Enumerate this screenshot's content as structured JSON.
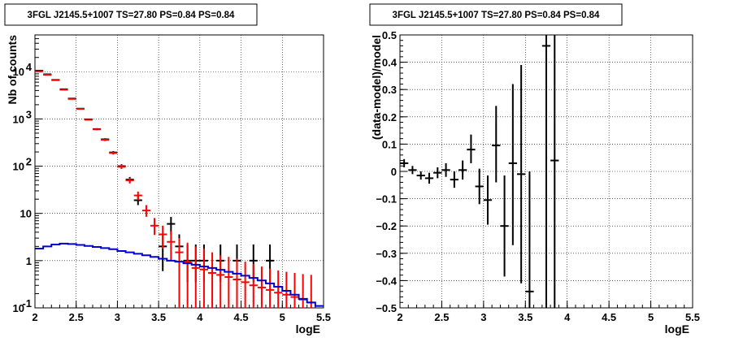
{
  "chart_data": [
    {
      "type": "scatter",
      "title": "3FGL J2145.5+1007 TS=27.80 PS=0.84 PS=0.84",
      "xlabel": "logE",
      "ylabel": "Nb of counts",
      "xlim": [
        2,
        5.5
      ],
      "ylim": [
        0.1,
        60000
      ],
      "yscale": "log",
      "grid": true,
      "xticks": [
        "2",
        "2.5",
        "3",
        "3.5",
        "4",
        "4.5",
        "5",
        "5.5"
      ],
      "yticks": [
        {
          "value": 0.1,
          "label": "10",
          "exp": "-1"
        },
        {
          "value": 1,
          "label": "1",
          "exp": ""
        },
        {
          "value": 10,
          "label": "10",
          "exp": ""
        },
        {
          "value": 100,
          "label": "10",
          "exp": "2"
        },
        {
          "value": 1000,
          "label": "10",
          "exp": "3"
        },
        {
          "value": 10000,
          "label": "10",
          "exp": "4"
        }
      ],
      "series": [
        {
          "color": "#000000",
          "style": "errorbar",
          "points": [
            {
              "x": 2.05,
              "y": 10500,
              "lo": 10300,
              "hi": 10700
            },
            {
              "x": 2.15,
              "y": 8800,
              "lo": 8600,
              "hi": 9000
            },
            {
              "x": 2.25,
              "y": 6700,
              "lo": 6550,
              "hi": 6850
            },
            {
              "x": 2.35,
              "y": 4250,
              "lo": 4150,
              "hi": 4350
            },
            {
              "x": 2.45,
              "y": 2700,
              "lo": 2620,
              "hi": 2780
            },
            {
              "x": 2.55,
              "y": 1650,
              "lo": 1600,
              "hi": 1700
            },
            {
              "x": 2.65,
              "y": 980,
              "lo": 950,
              "hi": 1010
            },
            {
              "x": 2.75,
              "y": 610,
              "lo": 585,
              "hi": 635
            },
            {
              "x": 2.85,
              "y": 370,
              "lo": 350,
              "hi": 390
            },
            {
              "x": 2.95,
              "y": 195,
              "lo": 181,
              "hi": 209
            },
            {
              "x": 3.05,
              "y": 100,
              "lo": 90,
              "hi": 110
            },
            {
              "x": 3.15,
              "y": 52,
              "lo": 45,
              "hi": 59
            },
            {
              "x": 3.25,
              "y": 19,
              "lo": 15,
              "hi": 24
            },
            {
              "x": 3.55,
              "y": 2,
              "lo": 0.6,
              "hi": 3.6
            },
            {
              "x": 3.65,
              "y": 6,
              "lo": 3.6,
              "hi": 8.4
            },
            {
              "x": 3.75,
              "y": 2,
              "lo": 0.6,
              "hi": 3.6
            },
            {
              "x": 3.85,
              "y": 1,
              "lo": 0.35,
              "hi": 2.2
            },
            {
              "x": 3.95,
              "y": 1,
              "lo": 0.35,
              "hi": 2.2
            },
            {
              "x": 4.05,
              "y": 1,
              "lo": 0.35,
              "hi": 2.2
            },
            {
              "x": 4.25,
              "y": 1,
              "lo": 0.35,
              "hi": 2.2
            },
            {
              "x": 4.45,
              "y": 1,
              "lo": 0.35,
              "hi": 2.2
            },
            {
              "x": 4.65,
              "y": 1,
              "lo": 0.35,
              "hi": 2.2
            },
            {
              "x": 4.85,
              "y": 1,
              "lo": 0.35,
              "hi": 2.2
            }
          ]
        },
        {
          "color": "#ff0000",
          "style": "errorbar",
          "points": [
            {
              "x": 2.05,
              "y": 10200,
              "lo": 10000,
              "hi": 10400
            },
            {
              "x": 2.15,
              "y": 8600,
              "lo": 8400,
              "hi": 8800
            },
            {
              "x": 2.25,
              "y": 6600,
              "lo": 6450,
              "hi": 6750
            },
            {
              "x": 2.35,
              "y": 4150,
              "lo": 4050,
              "hi": 4250
            },
            {
              "x": 2.45,
              "y": 2650,
              "lo": 2570,
              "hi": 2730
            },
            {
              "x": 2.55,
              "y": 1630,
              "lo": 1580,
              "hi": 1680
            },
            {
              "x": 2.65,
              "y": 960,
              "lo": 930,
              "hi": 990
            },
            {
              "x": 2.75,
              "y": 600,
              "lo": 575,
              "hi": 625
            },
            {
              "x": 2.85,
              "y": 360,
              "lo": 340,
              "hi": 380
            },
            {
              "x": 2.95,
              "y": 190,
              "lo": 176,
              "hi": 204
            },
            {
              "x": 3.05,
              "y": 97,
              "lo": 87,
              "hi": 107
            },
            {
              "x": 3.15,
              "y": 50,
              "lo": 43,
              "hi": 57
            },
            {
              "x": 3.25,
              "y": 24,
              "lo": 19,
              "hi": 29
            },
            {
              "x": 3.35,
              "y": 11.5,
              "lo": 8.5,
              "hi": 15
            },
            {
              "x": 3.45,
              "y": 5.5,
              "lo": 3.5,
              "hi": 8
            },
            {
              "x": 3.55,
              "y": 3.6,
              "lo": 1.8,
              "hi": 5.5
            },
            {
              "x": 3.65,
              "y": 2.5,
              "lo": 1.0,
              "hi": 4.2
            },
            {
              "x": 3.75,
              "y": 1.5,
              "lo": 0.1,
              "hi": 3.0
            },
            {
              "x": 3.85,
              "y": 0.95,
              "lo": 0.1,
              "hi": 2.4
            },
            {
              "x": 3.95,
              "y": 0.7,
              "lo": 0.1,
              "hi": 2.0
            },
            {
              "x": 4.05,
              "y": 0.65,
              "lo": 0.1,
              "hi": 1.8
            },
            {
              "x": 4.15,
              "y": 0.55,
              "lo": 0.1,
              "hi": 1.5
            },
            {
              "x": 4.25,
              "y": 0.5,
              "lo": 0.1,
              "hi": 1.3
            },
            {
              "x": 4.35,
              "y": 0.45,
              "lo": 0.1,
              "hi": 1.2
            },
            {
              "x": 4.45,
              "y": 0.4,
              "lo": 0.1,
              "hi": 1.1
            },
            {
              "x": 4.55,
              "y": 0.35,
              "lo": 0.1,
              "hi": 0.95
            },
            {
              "x": 4.65,
              "y": 0.3,
              "lo": 0.1,
              "hi": 0.85
            },
            {
              "x": 4.75,
              "y": 0.27,
              "lo": 0.1,
              "hi": 0.75
            },
            {
              "x": 4.85,
              "y": 0.24,
              "lo": 0.1,
              "hi": 0.68
            },
            {
              "x": 4.95,
              "y": 0.21,
              "lo": 0.1,
              "hi": 0.62
            },
            {
              "x": 5.05,
              "y": 0.19,
              "lo": 0.1,
              "hi": 0.58
            },
            {
              "x": 5.15,
              "y": 0.17,
              "lo": 0.1,
              "hi": 0.55
            },
            {
              "x": 5.25,
              "y": 0.15,
              "lo": 0.1,
              "hi": 0.52
            },
            {
              "x": 5.35,
              "y": 0.13,
              "lo": 0.1,
              "hi": 0.5
            }
          ]
        },
        {
          "color": "#0000cc",
          "style": "step",
          "x": [
            2.0,
            2.1,
            2.2,
            2.3,
            2.4,
            2.5,
            2.6,
            2.7,
            2.8,
            2.9,
            3.0,
            3.1,
            3.2,
            3.3,
            3.4,
            3.5,
            3.6,
            3.7,
            3.8,
            3.9,
            4.0,
            4.1,
            4.2,
            4.3,
            4.4,
            4.5,
            4.6,
            4.7,
            4.8,
            4.9,
            5.0,
            5.1,
            5.2,
            5.3,
            5.4
          ],
          "values": [
            1.8,
            2.0,
            2.2,
            2.3,
            2.25,
            2.15,
            2.05,
            1.95,
            1.85,
            1.75,
            1.6,
            1.5,
            1.4,
            1.3,
            1.2,
            1.1,
            1.0,
            0.95,
            0.88,
            0.82,
            0.75,
            0.7,
            0.64,
            0.58,
            0.53,
            0.48,
            0.43,
            0.38,
            0.33,
            0.28,
            0.23,
            0.19,
            0.155,
            0.13,
            0.11
          ]
        }
      ]
    },
    {
      "type": "scatter",
      "title": "3FGL J2145.5+1007 TS=27.80 PS=0.84 PS=0.84",
      "xlabel": "logE",
      "ylabel": "(data-model)/model",
      "xlim": [
        2,
        5.5
      ],
      "ylim": [
        -0.5,
        0.5
      ],
      "grid": true,
      "xticks": [
        "2",
        "2.5",
        "3",
        "3.5",
        "4",
        "4.5",
        "5",
        "5.5"
      ],
      "yticks": [
        "−0.5",
        "−0.4",
        "−0.3",
        "−0.2",
        "−0.1",
        "0",
        "0.1",
        "0.2",
        "0.3",
        "0.4",
        "0.5"
      ],
      "series": [
        {
          "color": "#000000",
          "style": "errorbar",
          "points": [
            {
              "x": 2.05,
              "y": 0.03,
              "lo": 0.015,
              "hi": 0.045
            },
            {
              "x": 2.15,
              "y": 0.005,
              "lo": -0.01,
              "hi": 0.02
            },
            {
              "x": 2.25,
              "y": -0.015,
              "lo": -0.03,
              "hi": 0.0
            },
            {
              "x": 2.35,
              "y": -0.025,
              "lo": -0.045,
              "hi": -0.005
            },
            {
              "x": 2.45,
              "y": -0.005,
              "lo": -0.025,
              "hi": 0.015
            },
            {
              "x": 2.55,
              "y": 0.005,
              "lo": -0.02,
              "hi": 0.03
            },
            {
              "x": 2.65,
              "y": -0.03,
              "lo": -0.06,
              "hi": 0.0
            },
            {
              "x": 2.75,
              "y": 0.005,
              "lo": -0.03,
              "hi": 0.04
            },
            {
              "x": 2.85,
              "y": 0.08,
              "lo": 0.03,
              "hi": 0.135
            },
            {
              "x": 2.95,
              "y": -0.055,
              "lo": -0.12,
              "hi": 0.01
            },
            {
              "x": 3.05,
              "y": -0.105,
              "lo": -0.195,
              "hi": -0.015
            },
            {
              "x": 3.15,
              "y": 0.095,
              "lo": -0.04,
              "hi": 0.24
            },
            {
              "x": 3.25,
              "y": -0.2,
              "lo": -0.385,
              "hi": -0.015
            },
            {
              "x": 3.35,
              "y": 0.03,
              "lo": -0.27,
              "hi": 0.32
            },
            {
              "x": 3.45,
              "y": -0.01,
              "lo": -0.41,
              "hi": 0.39
            },
            {
              "x": 3.55,
              "y": -0.44,
              "lo": -0.5,
              "hi": 0.0
            },
            {
              "x": 3.75,
              "y": 0.46,
              "lo": -0.5,
              "hi": 0.5
            },
            {
              "x": 3.85,
              "y": 0.04,
              "lo": -0.5,
              "hi": 0.5
            }
          ]
        }
      ]
    }
  ]
}
